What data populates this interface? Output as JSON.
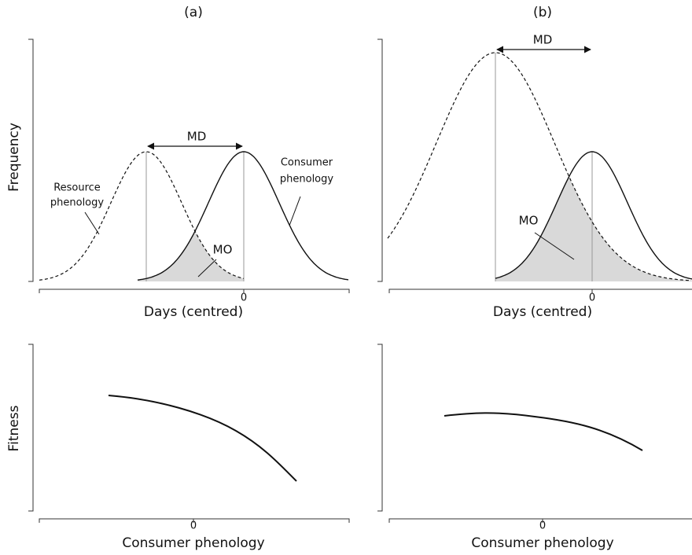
{
  "panels": [
    {
      "label": "(a)",
      "top": {
        "y_axis_title": "Frequency",
        "x_axis_title": "Days (centred)",
        "x_tick": "0",
        "annotations": {
          "md": "MD",
          "mo": "MO",
          "resource": [
            "Resource",
            "phenology"
          ],
          "consumer": [
            "Consumer",
            "phenology"
          ]
        }
      },
      "bottom": {
        "y_axis_title": "Fitness",
        "x_axis_title": "Consumer phenology",
        "x_tick": "0"
      }
    },
    {
      "label": "(b)",
      "top": {
        "x_axis_title": "Days (centred)",
        "x_tick": "0",
        "annotations": {
          "md": "MD",
          "mo": "MO"
        }
      },
      "bottom": {
        "x_axis_title": "Consumer phenology",
        "x_tick": "0"
      }
    }
  ]
}
